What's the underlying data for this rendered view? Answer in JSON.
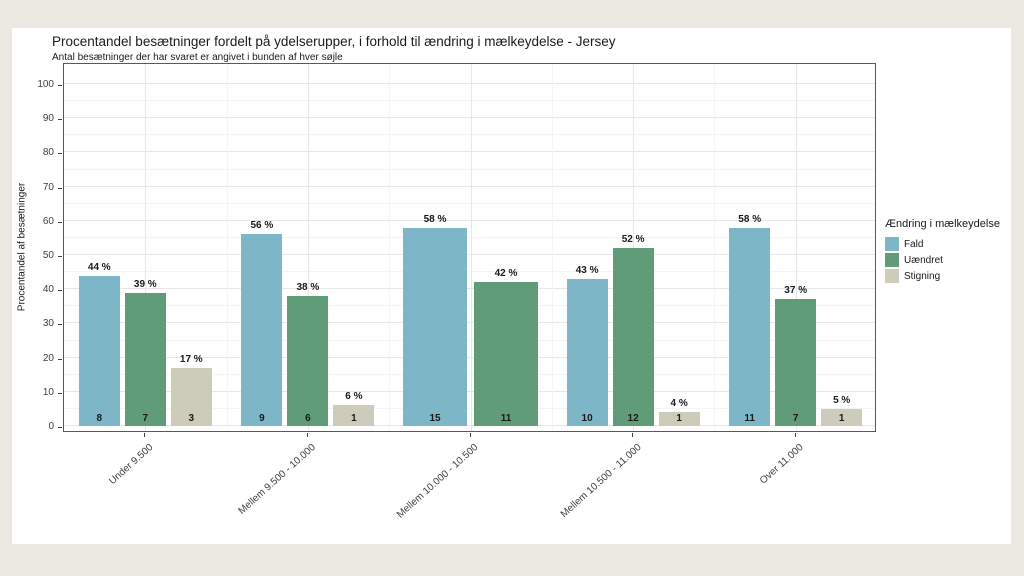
{
  "colors": {
    "background": "#E9E9E1",
    "card": "#FFFFFF",
    "panel_border": "#595959",
    "grid_major": "#E7E7E7",
    "grid_minor": "#F4F4F4",
    "axis_text": "#404040",
    "title_text": "#1A1A1A"
  },
  "chart_data": {
    "type": "bar",
    "title": "Procentandel besætninger fordelt på ydelserupper, i forhold til ændring i mælkeydelse - Jersey",
    "subtitle": "Antal besætninger der har svaret er angivet i bunden af hver søjle",
    "ylabel": "Procentandel af besætninger",
    "xlabel": "",
    "value_suffix": " %",
    "ylim": [
      0,
      105
    ],
    "yticks": [
      0,
      10,
      20,
      30,
      40,
      50,
      60,
      70,
      80,
      90,
      100
    ],
    "grid": "major and minor horizontal, major vertical at category centers",
    "legend_position": "right",
    "legend_title": "Ændring i mælkeydelse",
    "categories": [
      "Under 9.500",
      "Mellem 9.500 - 10.000",
      "Mellem 10.000 - 10.500",
      "Mellem 10.500 - 11.000",
      "Over 11.000"
    ],
    "series": [
      {
        "name": "Fald",
        "color": "#7DB6C6",
        "values": [
          44,
          56,
          58,
          43,
          58
        ],
        "counts": [
          8,
          9,
          15,
          10,
          11
        ]
      },
      {
        "name": "Uændret",
        "color": "#5F9C77",
        "values": [
          39,
          38,
          42,
          52,
          37
        ],
        "counts": [
          7,
          6,
          11,
          12,
          7
        ]
      },
      {
        "name": "Stigning",
        "color": "#CDCBB9",
        "values": [
          17,
          6,
          null,
          4,
          5
        ],
        "counts": [
          3,
          1,
          null,
          1,
          1
        ]
      }
    ]
  }
}
